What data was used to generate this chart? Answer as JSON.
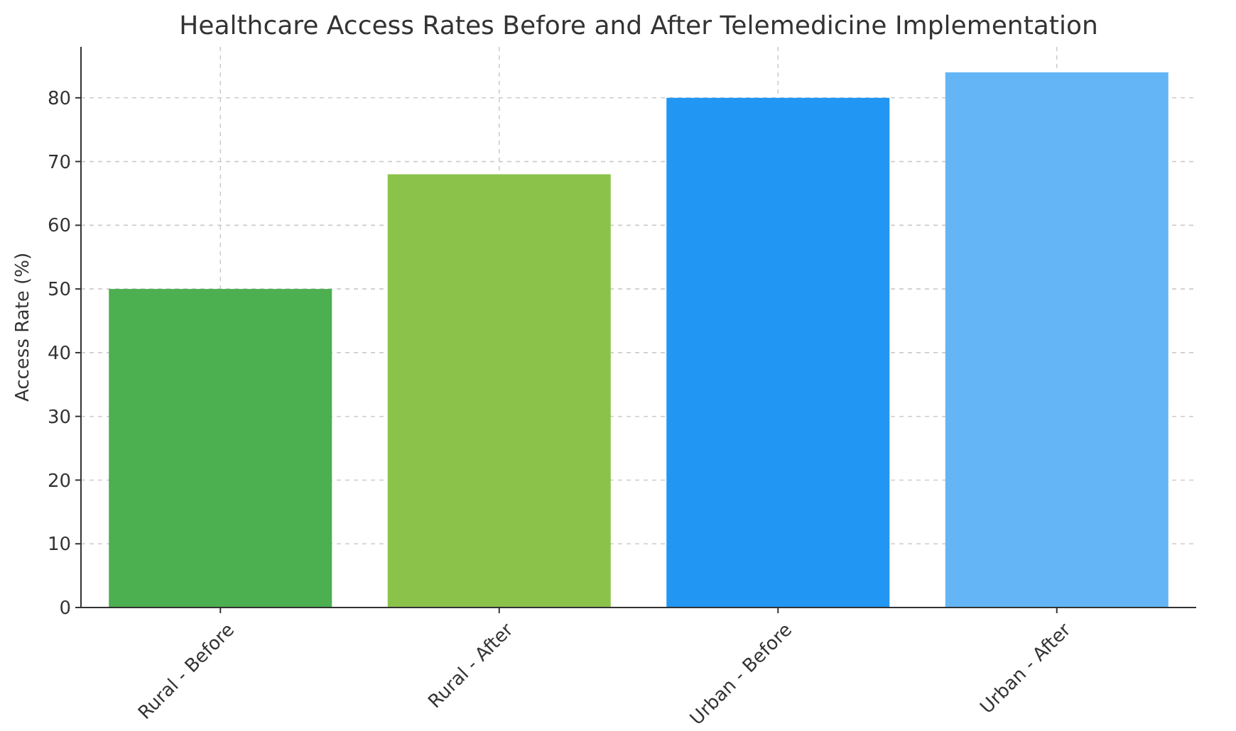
{
  "chart_data": {
    "type": "bar",
    "title": "Healthcare Access Rates Before and After Telemedicine Implementation",
    "ylabel": "Access Rate (%)",
    "categories": [
      "Rural - Before",
      "Rural - After",
      "Urban - Before",
      "Urban - After"
    ],
    "values": [
      50,
      68,
      80,
      84
    ],
    "colors": [
      "#4caf50",
      "#8bc34a",
      "#2196f3",
      "#64b5f6"
    ],
    "ylim": [
      0,
      88
    ],
    "yticks": [
      0,
      10,
      20,
      30,
      40,
      50,
      60,
      70,
      80
    ],
    "grid": true
  }
}
